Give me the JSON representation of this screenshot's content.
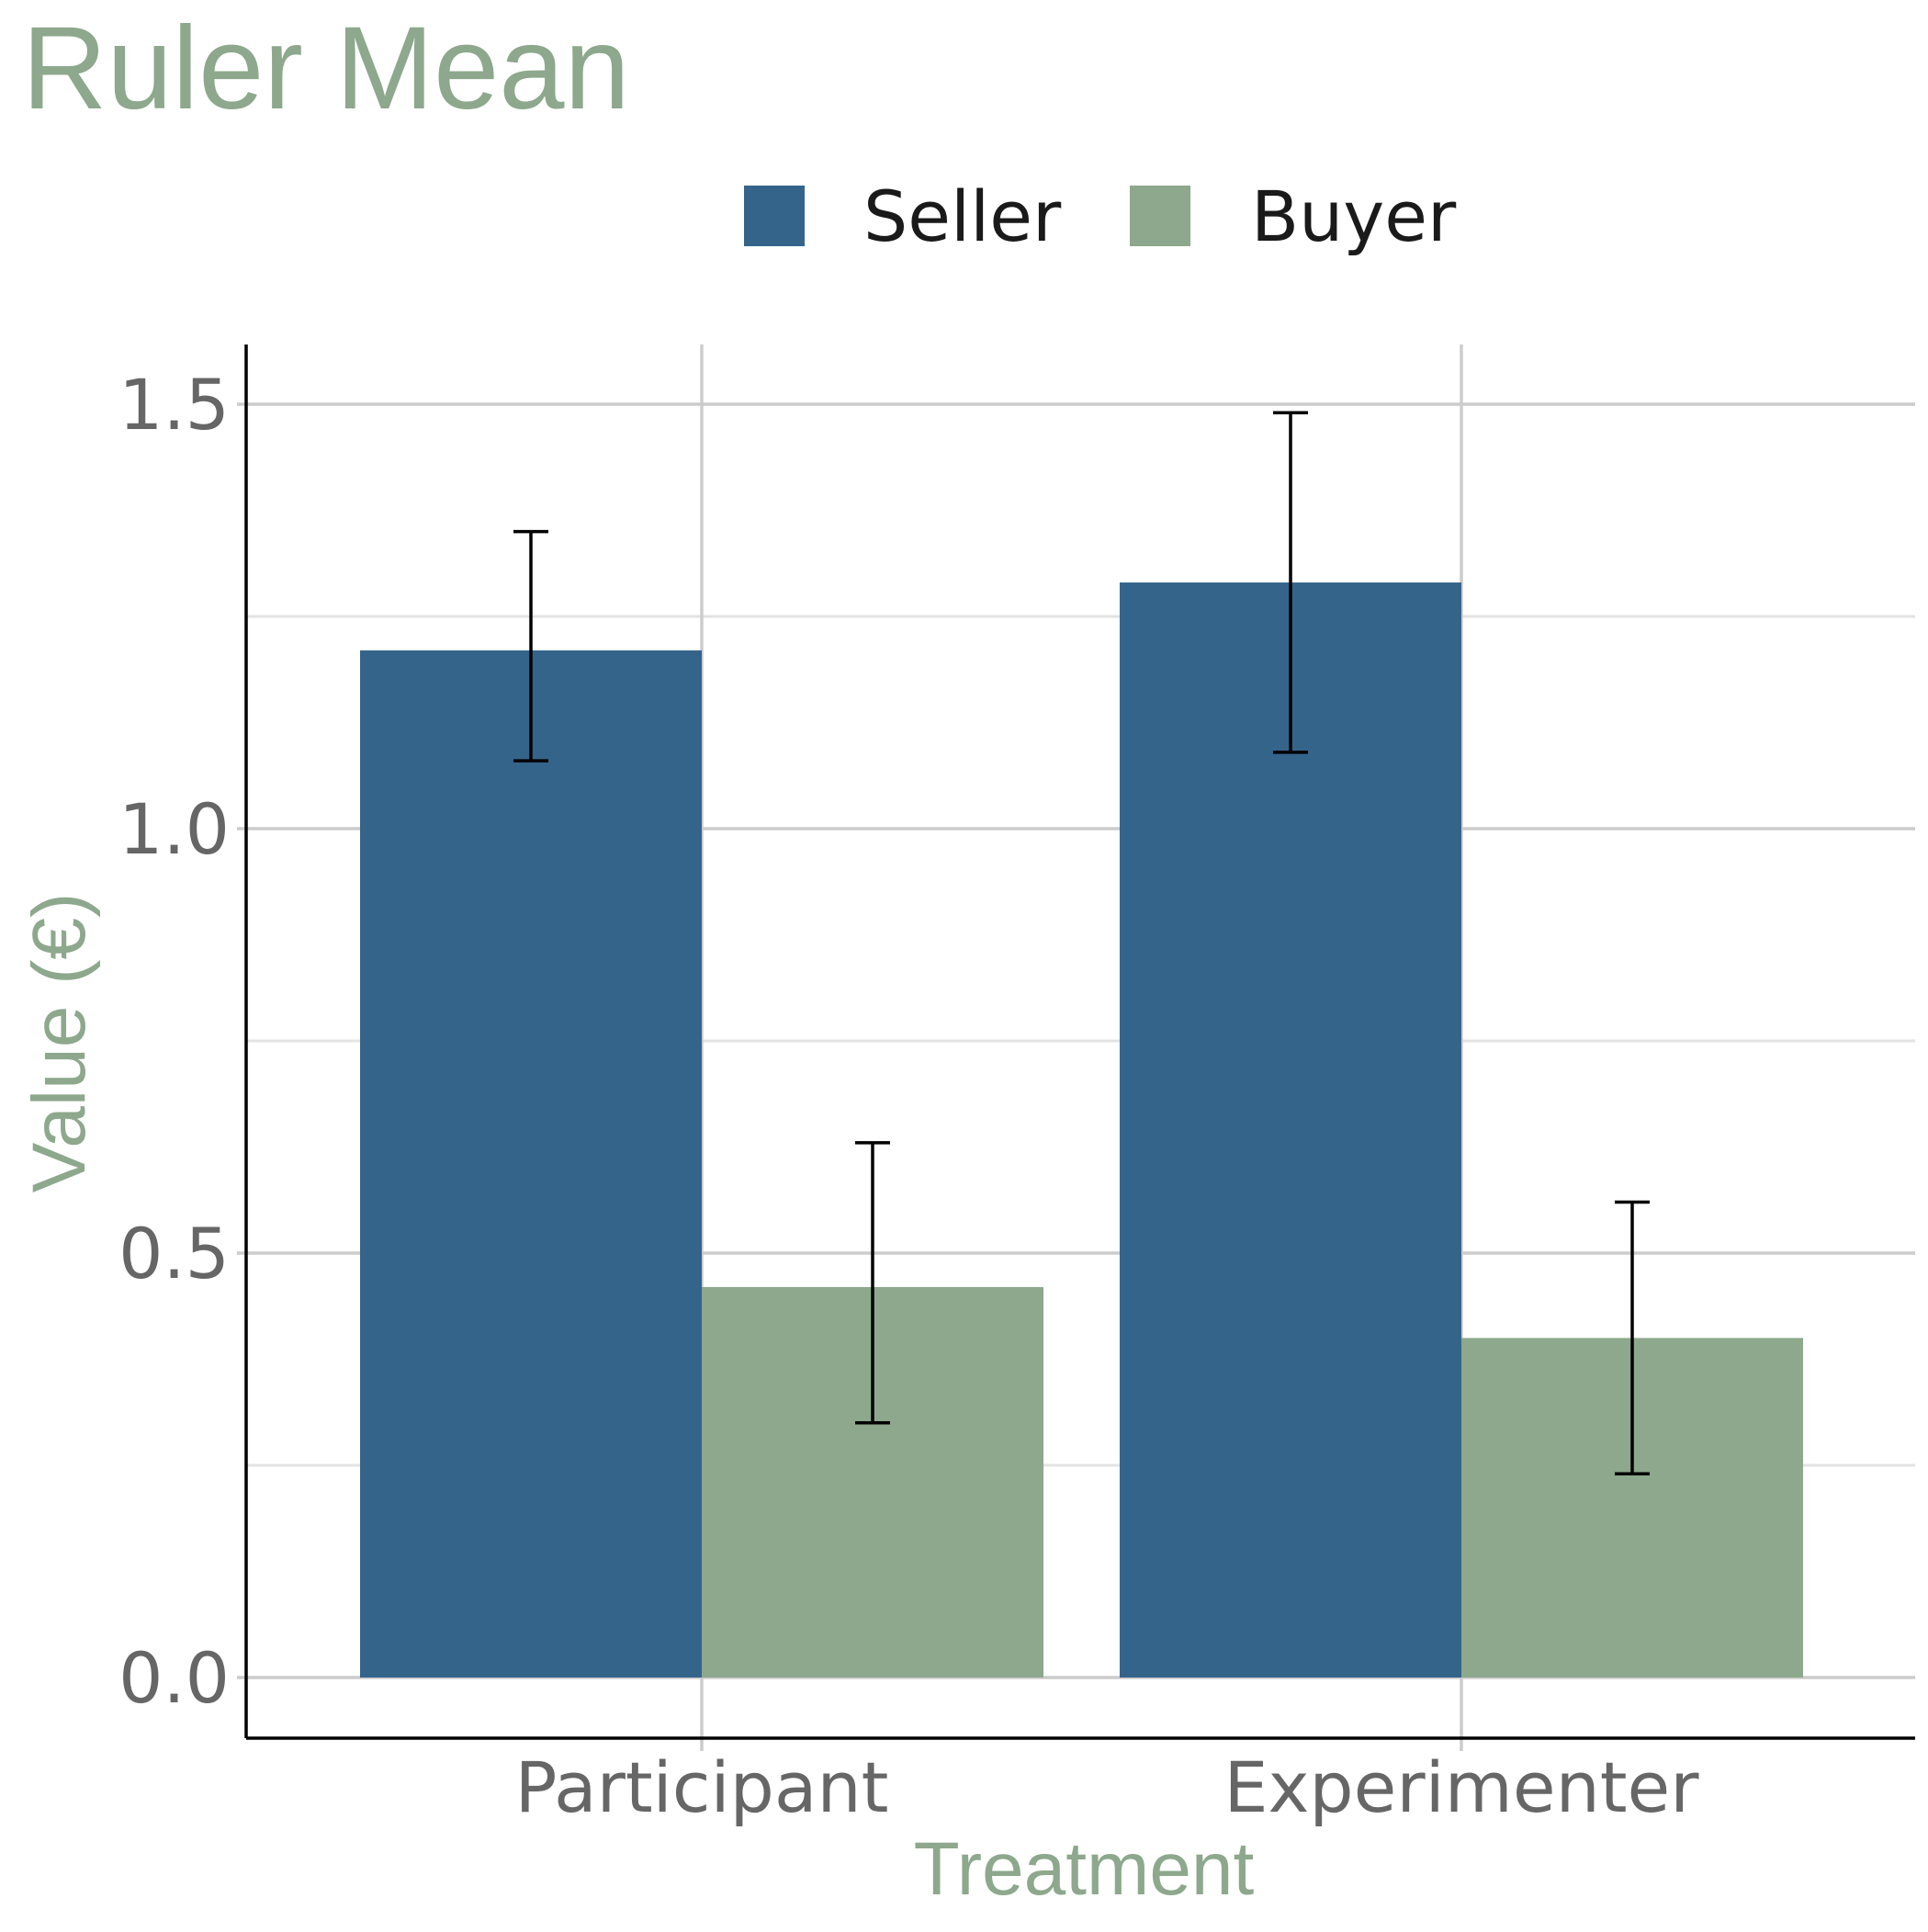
{
  "chart_data": {
    "type": "bar",
    "title": "Ruler Mean",
    "xlabel": "Treatment",
    "ylabel": "Value (€)",
    "categories": [
      "Participant",
      "Experimenter"
    ],
    "series": [
      {
        "name": "Seller",
        "color": "#35648b",
        "values": [
          1.21,
          1.29
        ],
        "error_low": [
          1.08,
          1.09
        ],
        "error_high": [
          1.35,
          1.49
        ]
      },
      {
        "name": "Buyer",
        "color": "#8da88c",
        "values": [
          0.46,
          0.4
        ],
        "error_low": [
          0.3,
          0.24
        ],
        "error_high": [
          0.63,
          0.56
        ]
      }
    ],
    "ylim": [
      -0.07,
      1.57
    ],
    "yticks": [
      0.0,
      0.5,
      1.0,
      1.5
    ],
    "ytick_labels": [
      "0.0",
      "0.5",
      "1.0",
      "1.5"
    ],
    "grid": true,
    "legend_position": "top",
    "title_color": "#8da88c",
    "axis_label_color": "#8da88c"
  }
}
